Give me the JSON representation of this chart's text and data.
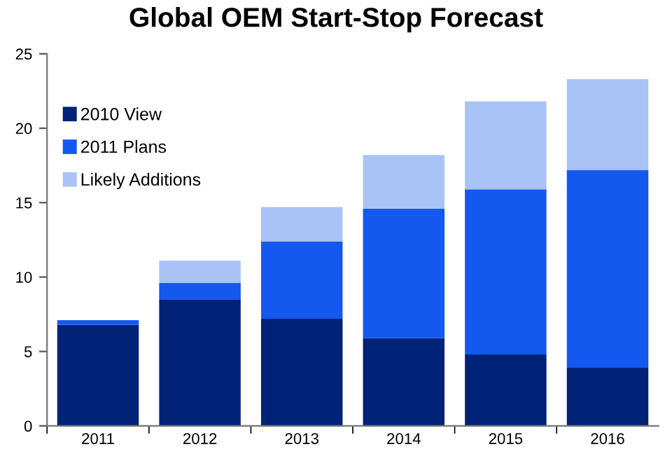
{
  "chart_data": {
    "type": "bar",
    "title": "Global OEM Start-Stop Forecast",
    "stacked": true,
    "categories": [
      "2011",
      "2012",
      "2013",
      "2014",
      "2015",
      "2016"
    ],
    "series": [
      {
        "name": "2010 View",
        "color": "#002277",
        "values": [
          6.8,
          8.5,
          7.2,
          5.9,
          4.8,
          3.9
        ]
      },
      {
        "name": "2011 Plans",
        "color": "#1458f0",
        "values": [
          0.3,
          1.1,
          5.2,
          8.7,
          11.1,
          13.3
        ]
      },
      {
        "name": "Likely Additions",
        "color": "#a9c3f7",
        "values": [
          0,
          1.5,
          2.3,
          3.6,
          5.9,
          6.1
        ]
      }
    ],
    "ylim": [
      0,
      25
    ],
    "yticks": [
      0,
      5,
      10,
      15,
      20,
      25
    ],
    "grid": false,
    "legend": "top left"
  }
}
